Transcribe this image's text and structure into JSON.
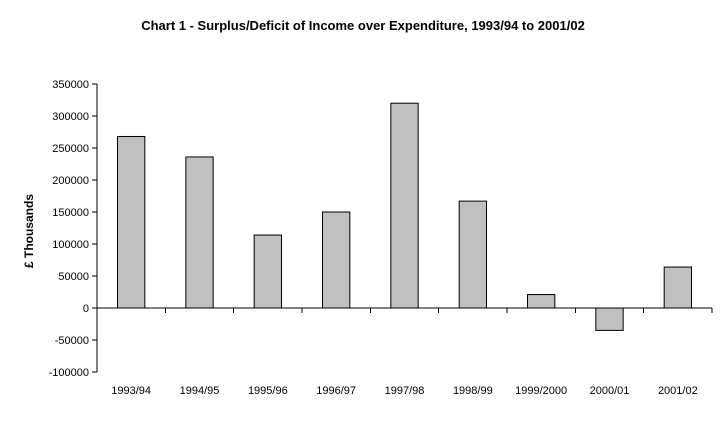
{
  "chart_data": {
    "type": "bar",
    "title": "Chart 1 - Surplus/Deficit of Income over Expenditure, 1993/94 to 2001/02",
    "xlabel": "",
    "ylabel": "£ Thousands",
    "categories": [
      "1993/94",
      "1994/95",
      "1995/96",
      "1996/97",
      "1997/98",
      "1998/99",
      "1999/2000",
      "2000/01",
      "2001/02"
    ],
    "values": [
      268000,
      236000,
      114000,
      150000,
      320000,
      167000,
      21000,
      -35000,
      64000
    ],
    "ylim": [
      -100000,
      350000
    ],
    "yticks": [
      "-100000",
      "-50000",
      "0",
      "50000",
      "100000",
      "150000",
      "200000",
      "250000",
      "300000",
      "350000"
    ],
    "grid": false,
    "legend": "none",
    "colors": {
      "bar_fill": "#c0c0c0",
      "bar_stroke": "#000000"
    }
  }
}
